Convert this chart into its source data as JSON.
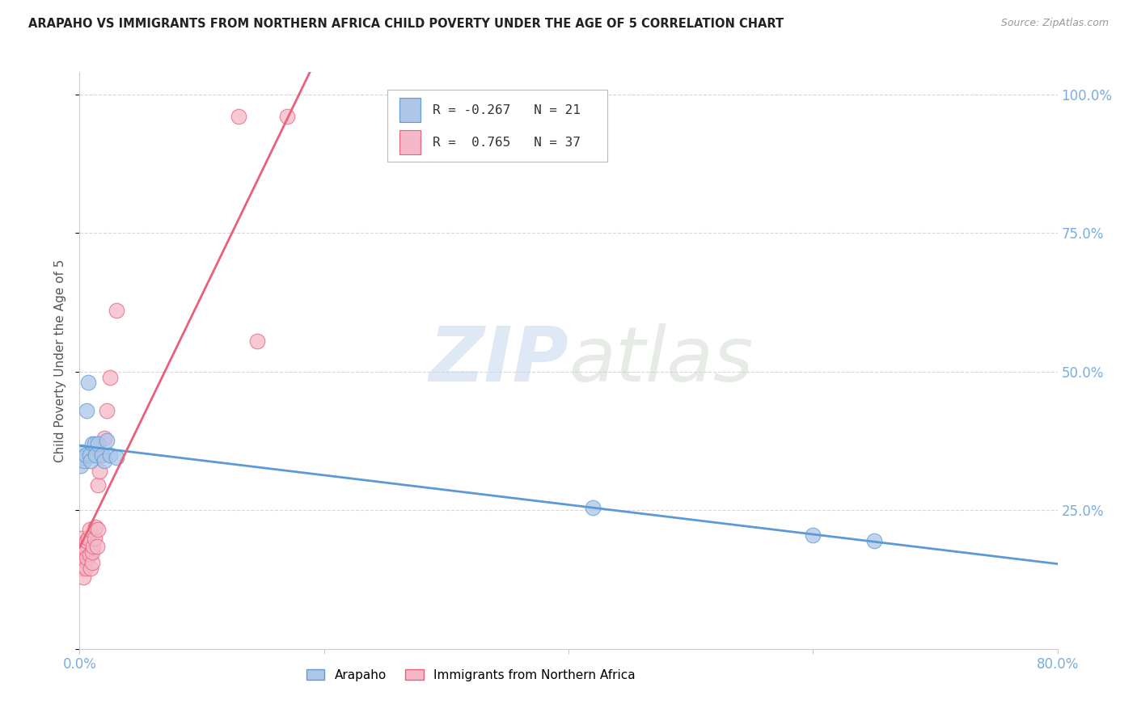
{
  "title": "ARAPAHO VS IMMIGRANTS FROM NORTHERN AFRICA CHILD POVERTY UNDER THE AGE OF 5 CORRELATION CHART",
  "source": "Source: ZipAtlas.com",
  "ylabel": "Child Poverty Under the Age of 5",
  "xlim": [
    0.0,
    0.8
  ],
  "ylim": [
    0.0,
    1.04
  ],
  "xticks": [
    0.0,
    0.2,
    0.4,
    0.6,
    0.8
  ],
  "xticklabels": [
    "0.0%",
    "",
    "",
    "",
    "80.0%"
  ],
  "ytick_positions": [
    0.0,
    0.25,
    0.5,
    0.75,
    1.0
  ],
  "ytick_labels": [
    "",
    "25.0%",
    "50.0%",
    "75.0%",
    "100.0%"
  ],
  "arapaho_R": -0.267,
  "arapaho_N": 21,
  "immigrants_R": 0.765,
  "immigrants_N": 37,
  "arapaho_color": "#aec6e8",
  "immigrants_color": "#f4b8c8",
  "arapaho_line_color": "#5b9bd5",
  "immigrants_line_color": "#e8607a",
  "arapaho_x": [
    0.001,
    0.002,
    0.003,
    0.004,
    0.005,
    0.006,
    0.007,
    0.008,
    0.009,
    0.01,
    0.012,
    0.013,
    0.015,
    0.018,
    0.02,
    0.022,
    0.025,
    0.03,
    0.42,
    0.6,
    0.65
  ],
  "arapaho_y": [
    0.33,
    0.355,
    0.345,
    0.34,
    0.35,
    0.43,
    0.48,
    0.35,
    0.34,
    0.37,
    0.37,
    0.35,
    0.37,
    0.35,
    0.34,
    0.375,
    0.35,
    0.345,
    0.255,
    0.205,
    0.195
  ],
  "immigrants_x": [
    0.001,
    0.001,
    0.001,
    0.001,
    0.002,
    0.002,
    0.002,
    0.003,
    0.003,
    0.004,
    0.004,
    0.005,
    0.005,
    0.006,
    0.006,
    0.007,
    0.008,
    0.008,
    0.009,
    0.01,
    0.01,
    0.011,
    0.012,
    0.013,
    0.014,
    0.015,
    0.015,
    0.016,
    0.017,
    0.018,
    0.02,
    0.022,
    0.025,
    0.03,
    0.13,
    0.145,
    0.17
  ],
  "immigrants_y": [
    0.155,
    0.175,
    0.185,
    0.2,
    0.145,
    0.165,
    0.18,
    0.13,
    0.15,
    0.16,
    0.175,
    0.145,
    0.18,
    0.165,
    0.195,
    0.2,
    0.17,
    0.215,
    0.145,
    0.155,
    0.175,
    0.185,
    0.2,
    0.22,
    0.185,
    0.215,
    0.295,
    0.32,
    0.35,
    0.35,
    0.38,
    0.43,
    0.49,
    0.61,
    0.96,
    0.555,
    0.96
  ],
  "watermark_zip": "ZIP",
  "watermark_atlas": "atlas",
  "background_color": "#ffffff",
  "grid_color": "#d8d8d8"
}
